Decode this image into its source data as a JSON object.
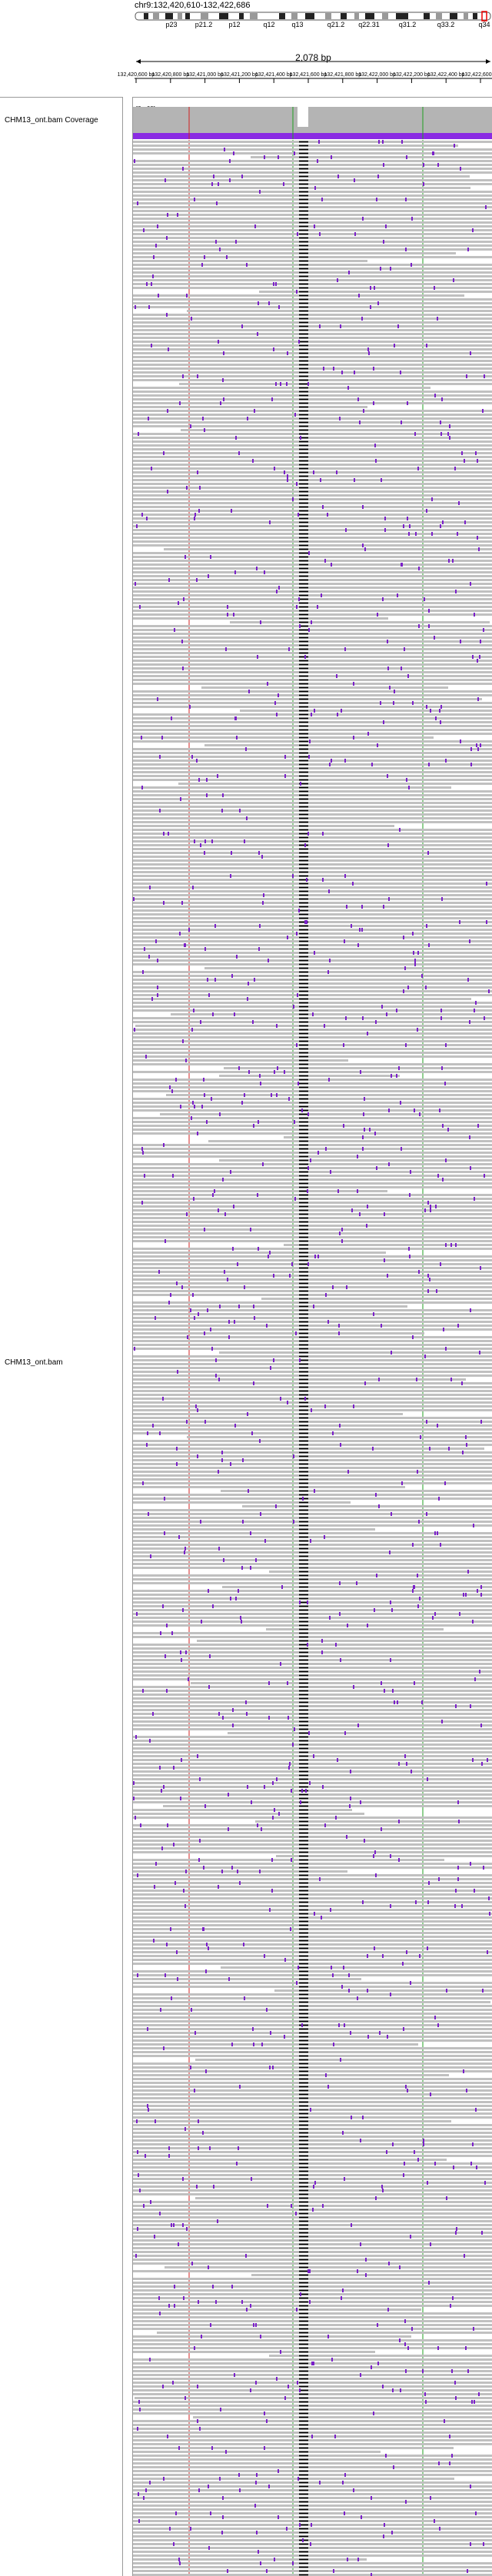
{
  "locus": "chr9:132,420,610-132,422,686",
  "span": "2,078 bp",
  "cytobands": [
    "p23",
    "p21.2",
    "p12",
    "q12",
    "q13",
    "q21.2",
    "q22.31",
    "q31.2",
    "q33.2",
    "q34"
  ],
  "ruler_ticks": [
    "132,420,600 bp",
    "132,420,800 bp",
    "132,421,000 bp",
    "132,421,200 bp",
    "132,421,400 bp",
    "132,421,600 bp",
    "132,421,800 bp",
    "132,422,000 bp",
    "132,422,200 bp",
    "132,422,400 bp",
    "132,422,600 bp"
  ],
  "ruler_tick_display": [
    "132,420,600 bp",
    "132,420,800 bp",
    "132,421,000 bp",
    "132,421,200 bp",
    "132,421,400 bp",
    "132,421,600 bp",
    "132,421,800 bp",
    "132,422,000 bp",
    "132,422,200 bp",
    "132,422,400 bp",
    "132,422,600 bp"
  ],
  "tracks": {
    "coverage_name": "CHM13_ont.bam Coverage",
    "alignment_name": "CHM13_ont.bam",
    "coverage_range": "[0 - 60]"
  },
  "colors": {
    "read": "#c0c0c0",
    "insertion": "#7a1fc9",
    "coverage": "#b4b4b4",
    "coverage_highlight": "#8a2be2",
    "mismatch_red": "#d02020",
    "mismatch_green": "#20a020"
  }
}
